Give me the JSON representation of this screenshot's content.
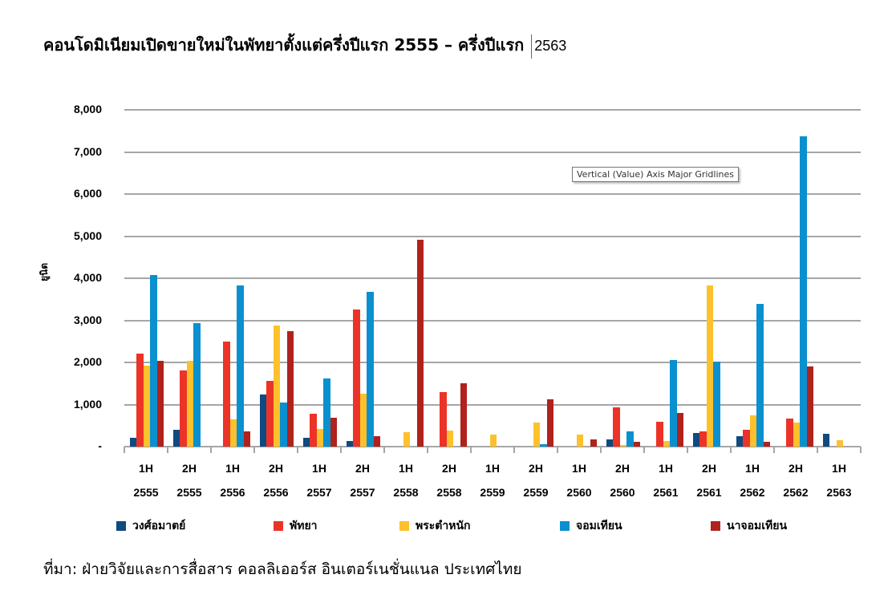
{
  "title": {
    "main": "คอนโดมิเนียมเปิดขายใหม่ในพัทยาตั้งแต่ครึ่งปีแรก 2555 – ครึ่งปีแรก",
    "year_after_cursor": "2563"
  },
  "tooltip": "Vertical (Value) Axis Major Gridlines",
  "source": "ที่มา: ฝ่ายวิจัยและการสื่อสาร คอลลิเออร์ส อินเตอร์เนชั่นแนล ประเทศไทย",
  "colors": {
    "wongamat": "#0f4a80",
    "pattaya": "#ec3328",
    "pratamnak": "#fdc12b",
    "jomtien": "#0a90cf",
    "najomtien": "#b0221c",
    "gridline": "#a6a6a6"
  },
  "chart_data": {
    "type": "bar",
    "title": "คอนโดมิเนียมเปิดขายใหม่ในพัทยาตั้งแต่ครึ่งปีแรก 2555 – ครึ่งปีแรก 2563",
    "xlabel": "",
    "ylabel": "ยูนิต",
    "ylim": [
      0,
      8000
    ],
    "yticks": [
      "-",
      "1,000",
      "2,000",
      "3,000",
      "4,000",
      "5,000",
      "6,000",
      "7,000",
      "8,000"
    ],
    "grid": true,
    "legend_position": "bottom",
    "categories": [
      {
        "half": "1H",
        "year": "2555"
      },
      {
        "half": "2H",
        "year": "2555"
      },
      {
        "half": "1H",
        "year": "2556"
      },
      {
        "half": "2H",
        "year": "2556"
      },
      {
        "half": "1H",
        "year": "2557"
      },
      {
        "half": "2H",
        "year": "2557"
      },
      {
        "half": "1H",
        "year": "2558"
      },
      {
        "half": "2H",
        "year": "2558"
      },
      {
        "half": "1H",
        "year": "2559"
      },
      {
        "half": "2H",
        "year": "2559"
      },
      {
        "half": "1H",
        "year": "2560"
      },
      {
        "half": "2H",
        "year": "2560"
      },
      {
        "half": "1H",
        "year": "2561"
      },
      {
        "half": "2H",
        "year": "2561"
      },
      {
        "half": "1H",
        "year": "2562"
      },
      {
        "half": "2H",
        "year": "2562"
      },
      {
        "half": "1H",
        "year": "2563"
      }
    ],
    "series": [
      {
        "name": "วงศ์อมาตย์",
        "color": "#0f4a80",
        "values": [
          210,
          400,
          0,
          1240,
          210,
          130,
          0,
          0,
          0,
          0,
          0,
          170,
          0,
          320,
          250,
          0,
          300
        ]
      },
      {
        "name": "พัทยา",
        "color": "#ec3328",
        "values": [
          2210,
          1810,
          2500,
          1560,
          780,
          3260,
          0,
          1300,
          0,
          0,
          0,
          930,
          590,
          360,
          400,
          670,
          0
        ]
      },
      {
        "name": "พระตำหนัก",
        "color": "#fdc12b",
        "values": [
          1920,
          2040,
          650,
          2880,
          420,
          1260,
          340,
          380,
          290,
          570,
          290,
          40,
          130,
          3830,
          740,
          570,
          150
        ]
      },
      {
        "name": "จอมเทียน",
        "color": "#0a90cf",
        "values": [
          4080,
          2930,
          3830,
          1050,
          1620,
          3680,
          0,
          0,
          0,
          60,
          0,
          360,
          2060,
          2020,
          3390,
          7370,
          0
        ]
      },
      {
        "name": "นาจอมเทียน",
        "color": "#b0221c",
        "values": [
          2040,
          0,
          360,
          2740,
          690,
          250,
          4910,
          1500,
          0,
          1120,
          170,
          110,
          800,
          0,
          110,
          1900,
          0
        ]
      }
    ]
  }
}
